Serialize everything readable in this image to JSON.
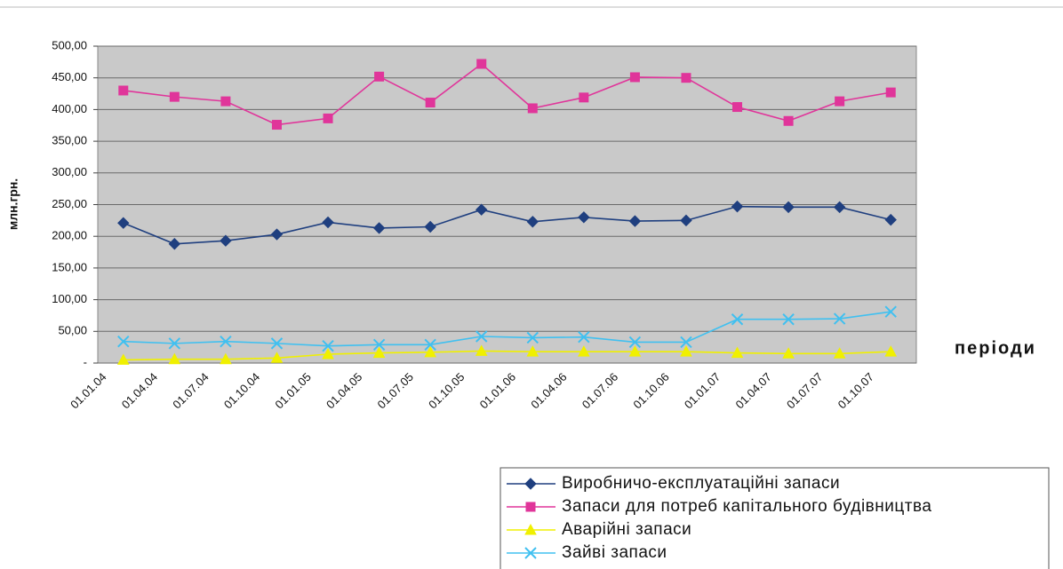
{
  "chart_data": {
    "type": "line",
    "y_label": "млн.грн.",
    "x_label": "періоди",
    "categories": [
      "01.01.04",
      "01.04.04",
      "01.07.04",
      "01.10.04",
      "01.01.05",
      "01.04.05",
      "01.07.05",
      "01.10.05",
      "01.01.06",
      "01.04.06",
      "01.07.06",
      "01.10.06",
      "01.01.07",
      "01.04.07",
      "01.07.07",
      "01.10.07"
    ],
    "series": [
      {
        "name": "Виробничо-експлуатаційні запаси",
        "color": "#1f3f7f",
        "marker": "diamond",
        "values": [
          221,
          188,
          193,
          203,
          222,
          213,
          215,
          242,
          223,
          230,
          224,
          225,
          247,
          246,
          246,
          226
        ]
      },
      {
        "name": "Запаси для потреб капітального будівництва",
        "color": "#e0359a",
        "marker": "square",
        "values": [
          430,
          420,
          413,
          376,
          386,
          452,
          411,
          472,
          402,
          419,
          451,
          450,
          404,
          382,
          413,
          427
        ]
      },
      {
        "name": "Аварійні  запаси",
        "color": "#f0f000",
        "marker": "triangle",
        "values": [
          5,
          6,
          6,
          8,
          14,
          16,
          17,
          19,
          18,
          18,
          18,
          18,
          16,
          15,
          15,
          18
        ]
      },
      {
        "name": "Зайві запаси",
        "color": "#40c0f0",
        "marker": "x",
        "values": [
          34,
          31,
          34,
          31,
          27,
          29,
          29,
          42,
          40,
          41,
          33,
          33,
          69,
          69,
          70,
          81
        ]
      }
    ],
    "ylim": [
      0,
      500
    ],
    "yticks": [
      {
        "value": 0,
        "label": "-"
      },
      {
        "value": 50,
        "label": "50,00"
      },
      {
        "value": 100,
        "label": "100,00"
      },
      {
        "value": 150,
        "label": "150,00"
      },
      {
        "value": 200,
        "label": "200,00"
      },
      {
        "value": 250,
        "label": "250,00"
      },
      {
        "value": 300,
        "label": "300,00"
      },
      {
        "value": 350,
        "label": "350,00"
      },
      {
        "value": 400,
        "label": "400,00"
      },
      {
        "value": 450,
        "label": "450,00"
      },
      {
        "value": 500,
        "label": "500,00"
      }
    ],
    "grid": true,
    "legend": "bottom-right"
  }
}
